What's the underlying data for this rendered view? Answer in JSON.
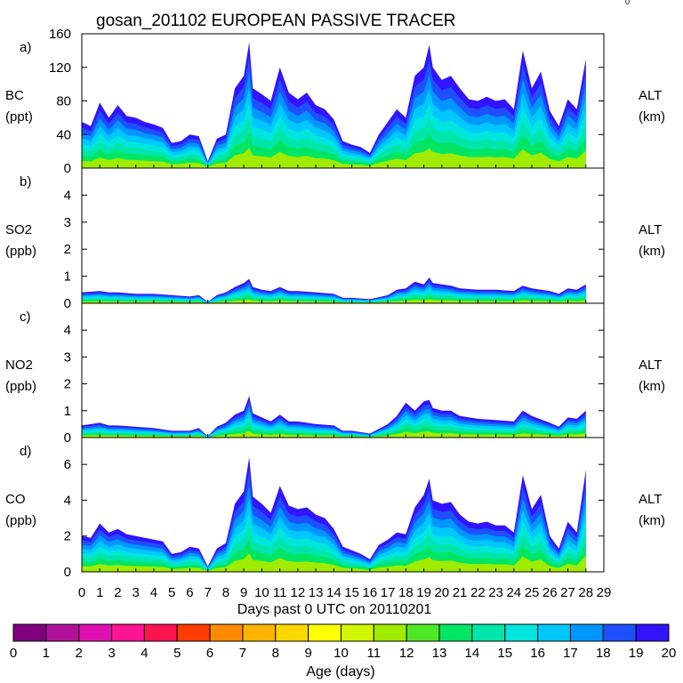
{
  "title": "gosan_201102 EUROPEAN PASSIVE TRACER",
  "corner_mark": "0",
  "x_axis": {
    "label": "Days past 0 UTC on 20110201",
    "range": [
      0,
      29
    ],
    "ticks": [
      "0",
      "1",
      "2",
      "3",
      "4",
      "5",
      "6",
      "7",
      "8",
      "9",
      "10",
      "11",
      "12",
      "13",
      "14",
      "15",
      "16",
      "17",
      "18",
      "19",
      "20",
      "21",
      "22",
      "23",
      "24",
      "25",
      "26",
      "27",
      "28",
      "29"
    ]
  },
  "colorbar": {
    "label": "Age (days)",
    "ticks": [
      "0",
      "1",
      "2",
      "3",
      "4",
      "5",
      "6",
      "7",
      "8",
      "9",
      "10",
      "11",
      "12",
      "13",
      "14",
      "15",
      "16",
      "17",
      "18",
      "19",
      "20"
    ],
    "colors": [
      "#800080",
      "#b0109a",
      "#e011b4",
      "#ff1493",
      "#ff1450",
      "#ff3c00",
      "#ff8c00",
      "#ffb400",
      "#ffd700",
      "#ffff00",
      "#d2f500",
      "#a0eb00",
      "#50e628",
      "#00e664",
      "#00e6aa",
      "#00e6dc",
      "#00c8ff",
      "#0096ff",
      "#1e50ff",
      "#3214ff"
    ]
  },
  "chart_data": [
    {
      "type": "area",
      "panel": "a)",
      "ylabel": "BC",
      "yunit": "(ppt)",
      "right_label": "ALT",
      "right_unit": "(km)",
      "ylim": [
        0,
        160
      ],
      "yticks": [
        "0",
        "40",
        "80",
        "120",
        "160"
      ],
      "x": [
        0,
        0.5,
        1,
        1.5,
        2,
        2.5,
        3,
        3.5,
        4,
        4.5,
        5,
        5.5,
        6,
        6.5,
        7,
        7.5,
        8,
        8.5,
        9,
        9.3,
        9.5,
        10,
        10.5,
        11,
        11.5,
        12,
        12.5,
        13,
        13.5,
        14,
        14.5,
        15,
        15.5,
        16,
        16.5,
        17,
        17.5,
        18,
        18.5,
        19,
        19.3,
        19.5,
        20,
        20.5,
        21,
        21.5,
        22,
        22.5,
        23,
        23.5,
        24,
        24.5,
        25,
        25.5,
        26,
        26.5,
        27,
        27.5,
        28
      ],
      "values": [
        55,
        50,
        78,
        60,
        75,
        62,
        60,
        55,
        52,
        48,
        30,
        32,
        40,
        38,
        8,
        35,
        40,
        95,
        110,
        150,
        95,
        88,
        80,
        120,
        90,
        82,
        90,
        75,
        70,
        58,
        32,
        28,
        25,
        18,
        40,
        55,
        70,
        60,
        110,
        120,
        147,
        120,
        105,
        110,
        95,
        82,
        80,
        85,
        80,
        82,
        70,
        140,
        95,
        115,
        68,
        50,
        82,
        70,
        130
      ],
      "legend": "Age (days) 0-20, stacked contributions"
    },
    {
      "type": "area",
      "panel": "b)",
      "ylabel": "SO2",
      "yunit": "(ppb)",
      "right_label": "ALT",
      "right_unit": "(km)",
      "ylim": [
        0,
        5
      ],
      "yticks": [
        "0",
        "1",
        "2",
        "3",
        "4"
      ],
      "x": [
        0,
        1,
        1.5,
        2,
        3,
        4,
        5,
        6,
        6.5,
        7,
        7.5,
        8,
        8.5,
        9,
        9.3,
        9.5,
        10,
        10.5,
        11,
        11.5,
        12,
        13,
        14,
        14.5,
        15,
        16,
        17,
        17.5,
        18,
        18.5,
        19,
        19.3,
        19.5,
        20,
        20.5,
        21,
        22,
        23,
        24,
        24.5,
        25,
        26,
        26.5,
        27,
        27.5,
        28
      ],
      "values": [
        0.4,
        0.45,
        0.4,
        0.4,
        0.35,
        0.35,
        0.3,
        0.25,
        0.3,
        0.05,
        0.3,
        0.4,
        0.6,
        0.75,
        0.9,
        0.6,
        0.5,
        0.45,
        0.6,
        0.45,
        0.45,
        0.4,
        0.35,
        0.2,
        0.2,
        0.15,
        0.3,
        0.5,
        0.55,
        0.8,
        0.7,
        0.95,
        0.75,
        0.7,
        0.65,
        0.55,
        0.5,
        0.5,
        0.45,
        0.65,
        0.55,
        0.45,
        0.35,
        0.55,
        0.5,
        0.7
      ]
    },
    {
      "type": "area",
      "panel": "c)",
      "ylabel": "NO2",
      "yunit": "(ppb)",
      "right_label": "ALT",
      "right_unit": "(km)",
      "ylim": [
        0,
        5
      ],
      "yticks": [
        "0",
        "1",
        "2",
        "3",
        "4"
      ],
      "x": [
        0,
        1,
        1.5,
        2,
        3,
        4,
        5,
        6,
        6.5,
        7,
        7.5,
        8,
        8.5,
        9,
        9.3,
        9.5,
        10,
        10.5,
        11,
        11.5,
        12,
        13,
        14,
        14.5,
        15,
        16,
        17,
        17.5,
        18,
        18.5,
        19,
        19.3,
        19.5,
        20,
        20.5,
        21,
        22,
        23,
        24,
        24.5,
        25,
        26,
        26.5,
        27,
        27.5,
        28
      ],
      "values": [
        0.45,
        0.55,
        0.45,
        0.45,
        0.4,
        0.35,
        0.25,
        0.25,
        0.35,
        0.05,
        0.4,
        0.55,
        0.85,
        1.0,
        1.55,
        0.9,
        0.75,
        0.6,
        0.85,
        0.6,
        0.6,
        0.5,
        0.45,
        0.25,
        0.25,
        0.15,
        0.5,
        0.8,
        1.3,
        1.0,
        1.35,
        1.4,
        1.1,
        1.0,
        1.0,
        0.8,
        0.7,
        0.65,
        0.6,
        1.0,
        0.8,
        0.55,
        0.4,
        0.75,
        0.7,
        1.0
      ]
    },
    {
      "type": "area",
      "panel": "d)",
      "ylabel": "CO",
      "yunit": "(ppb)",
      "right_label": "ALT",
      "right_unit": "(km)",
      "ylim": [
        0,
        7.5
      ],
      "yticks": [
        "0",
        "2",
        "4",
        "6"
      ],
      "x": [
        0,
        0.5,
        1,
        1.5,
        2,
        2.5,
        3,
        3.5,
        4,
        4.5,
        5,
        5.5,
        6,
        6.5,
        7,
        7.5,
        8,
        8.5,
        9,
        9.3,
        9.5,
        10,
        10.5,
        11,
        11.5,
        12,
        12.5,
        13,
        13.5,
        14,
        14.5,
        15,
        15.5,
        16,
        16.5,
        17,
        17.5,
        18,
        18.5,
        19,
        19.3,
        19.5,
        20,
        20.5,
        21,
        21.5,
        22,
        22.5,
        23,
        23.5,
        24,
        24.5,
        25,
        25.5,
        26,
        26.5,
        27,
        27.5,
        28
      ],
      "values": [
        2.0,
        1.9,
        2.7,
        2.2,
        2.4,
        2.1,
        2.0,
        1.9,
        1.8,
        1.7,
        1.0,
        1.1,
        1.4,
        1.3,
        0.3,
        1.3,
        1.6,
        3.8,
        4.5,
        6.4,
        4.2,
        3.8,
        3.3,
        4.8,
        3.7,
        3.5,
        3.6,
        3.2,
        3.0,
        2.4,
        1.4,
        1.2,
        1.0,
        0.7,
        1.5,
        1.8,
        2.2,
        2.1,
        3.6,
        4.3,
        5.2,
        4.0,
        3.8,
        3.9,
        3.2,
        2.8,
        2.7,
        2.8,
        2.6,
        2.6,
        2.2,
        5.4,
        3.5,
        4.3,
        2.0,
        1.3,
        2.8,
        2.2,
        5.7
      ]
    }
  ]
}
